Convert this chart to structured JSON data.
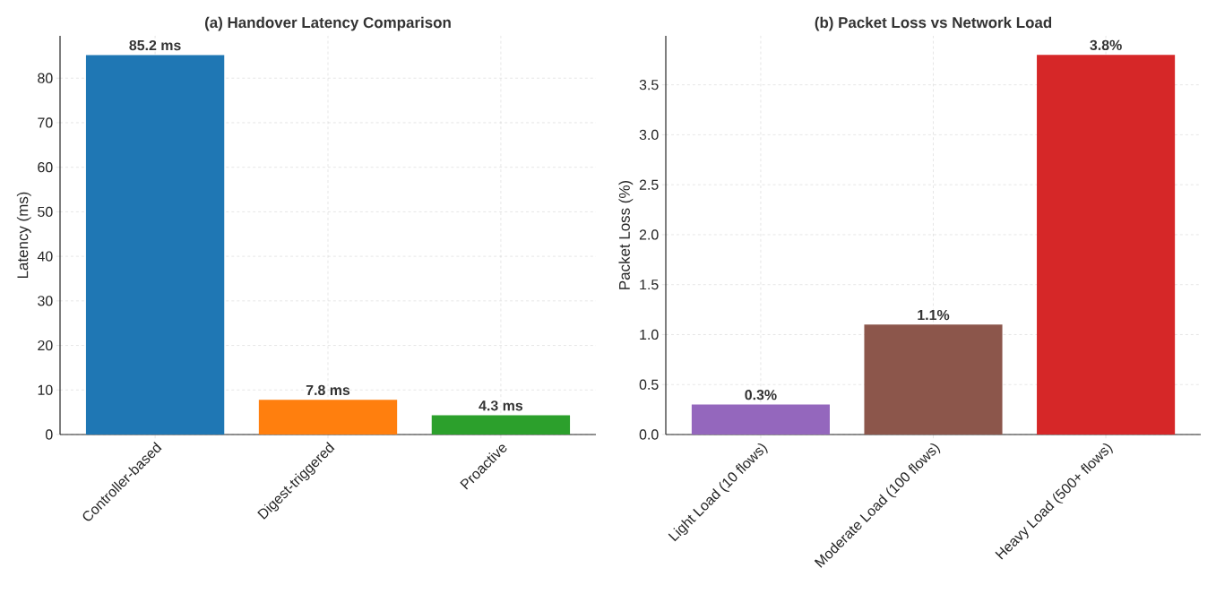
{
  "chart_data": [
    {
      "type": "bar",
      "title": "(a) Handover Latency Comparison",
      "ylabel": "Latency (ms)",
      "categories": [
        "Controller-based",
        "Digest-triggered",
        "Proactive"
      ],
      "values": [
        85.2,
        7.8,
        4.3
      ],
      "colors": [
        "#1f77b4",
        "#ff7f0e",
        "#2ca02c"
      ],
      "value_labels": [
        "85.2 ms",
        "7.8 ms",
        "4.3 ms"
      ],
      "ylim": [
        0,
        89.5
      ],
      "yticks": [
        0,
        10,
        20,
        30,
        40,
        50,
        60,
        70,
        80
      ],
      "grid": true
    },
    {
      "type": "bar",
      "title": "(b) Packet Loss vs Network Load",
      "ylabel": "Packet Loss (%)",
      "categories": [
        "Light Load (10 flows)",
        "Moderate Load (100 flows)",
        "Heavy Load (500+ flows)"
      ],
      "values": [
        0.3,
        1.1,
        3.8
      ],
      "colors": [
        "#9467bd",
        "#8c564b",
        "#d62728"
      ],
      "value_labels": [
        "0.3%",
        "1.1%",
        "3.8%"
      ],
      "ylim": [
        0,
        3.99
      ],
      "yticks": [
        {
          "value": 0,
          "label": "0.0"
        },
        {
          "value": 0.5,
          "label": "0.5"
        },
        {
          "value": 1,
          "label": "1.0"
        },
        {
          "value": 1.5,
          "label": "1.5"
        },
        {
          "value": 2,
          "label": "2.0"
        },
        {
          "value": 2.5,
          "label": "2.5"
        },
        {
          "value": 3,
          "label": "3.0"
        },
        {
          "value": 3.5,
          "label": "3.5"
        }
      ],
      "grid": true
    }
  ]
}
